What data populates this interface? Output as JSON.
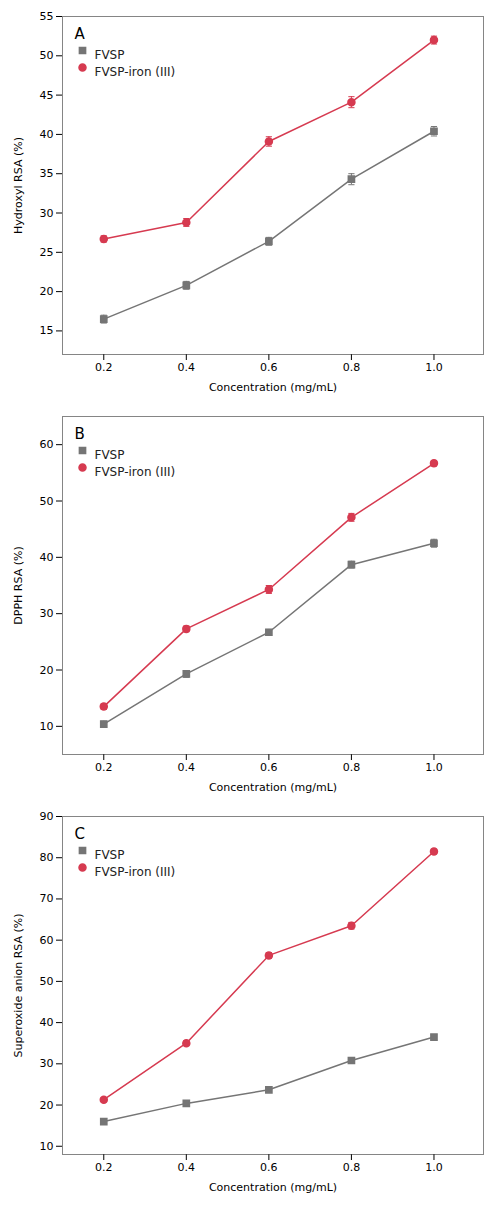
{
  "chart_data": [
    {
      "type": "line",
      "title": "A",
      "xlabel": "Concentration (mg/mL)",
      "ylabel": "Hydroxyl RSA (%)",
      "x": [
        0.2,
        0.4,
        0.6,
        0.8,
        1.0
      ],
      "xlim": [
        0.1,
        1.12
      ],
      "xticks": [
        0.2,
        0.4,
        0.6,
        0.8,
        {
          "value": 1.0,
          "label": "1.0"
        }
      ],
      "ylim": [
        12,
        55
      ],
      "yticks": [
        15,
        20,
        25,
        30,
        35,
        40,
        45,
        50,
        55
      ],
      "grid": false,
      "legend": "upper left",
      "series": [
        {
          "name": "FVSP",
          "color": "#757575",
          "marker": "square",
          "values": [
            16.5,
            20.8,
            26.4,
            34.3,
            40.4
          ],
          "errors": [
            0.5,
            0.5,
            0.5,
            0.7,
            0.6
          ]
        },
        {
          "name": "FVSP-iron (III)",
          "color": "#d63a50",
          "marker": "circle",
          "values": [
            26.7,
            28.8,
            39.1,
            44.1,
            52.0
          ],
          "errors": [
            0.4,
            0.5,
            0.6,
            0.7,
            0.5
          ]
        }
      ]
    },
    {
      "type": "line",
      "title": "B",
      "xlabel": "Concentration (mg/mL)",
      "ylabel": "DPPH RSA (%)",
      "x": [
        0.2,
        0.4,
        0.6,
        0.8,
        1.0
      ],
      "xlim": [
        0.1,
        1.12
      ],
      "xticks": [
        0.2,
        0.4,
        0.6,
        0.8,
        {
          "value": 1.0,
          "label": "1.0"
        }
      ],
      "ylim": [
        5,
        65
      ],
      "yticks": [
        10,
        20,
        30,
        40,
        50,
        60
      ],
      "grid": false,
      "legend": "upper left",
      "series": [
        {
          "name": "FVSP",
          "color": "#757575",
          "marker": "square",
          "values": [
            10.4,
            19.3,
            26.7,
            38.7,
            42.5
          ],
          "errors": [
            0.5,
            0.6,
            0.5,
            0.6,
            0.7
          ]
        },
        {
          "name": "FVSP-iron (III)",
          "color": "#d63a50",
          "marker": "circle",
          "values": [
            13.5,
            27.3,
            34.3,
            47.1,
            56.7
          ],
          "errors": [
            0.5,
            0.5,
            0.7,
            0.7,
            0.5
          ]
        }
      ]
    },
    {
      "type": "line",
      "title": "C",
      "xlabel": "Concentration (mg/mL)",
      "ylabel": "Superoxide anion RSA (%)",
      "x": [
        0.2,
        0.4,
        0.6,
        0.8,
        1.0
      ],
      "xlim": [
        0.1,
        1.12
      ],
      "xticks": [
        0.2,
        0.4,
        0.6,
        0.8,
        {
          "value": 1.0,
          "label": "1.0"
        }
      ],
      "ylim": [
        8,
        90
      ],
      "yticks": [
        10,
        20,
        30,
        40,
        50,
        60,
        70,
        80,
        90
      ],
      "grid": false,
      "legend": "upper left",
      "series": [
        {
          "name": "FVSP",
          "color": "#757575",
          "marker": "square",
          "values": [
            16.0,
            20.4,
            23.7,
            30.8,
            36.5
          ],
          "errors": [
            0.5,
            0.5,
            0.5,
            0.6,
            0.6
          ]
        },
        {
          "name": "FVSP-iron (III)",
          "color": "#d63a50",
          "marker": "circle",
          "values": [
            21.3,
            35.0,
            56.3,
            63.5,
            81.5
          ],
          "errors": [
            0.5,
            0.6,
            0.7,
            0.8,
            0.6
          ]
        }
      ]
    }
  ]
}
